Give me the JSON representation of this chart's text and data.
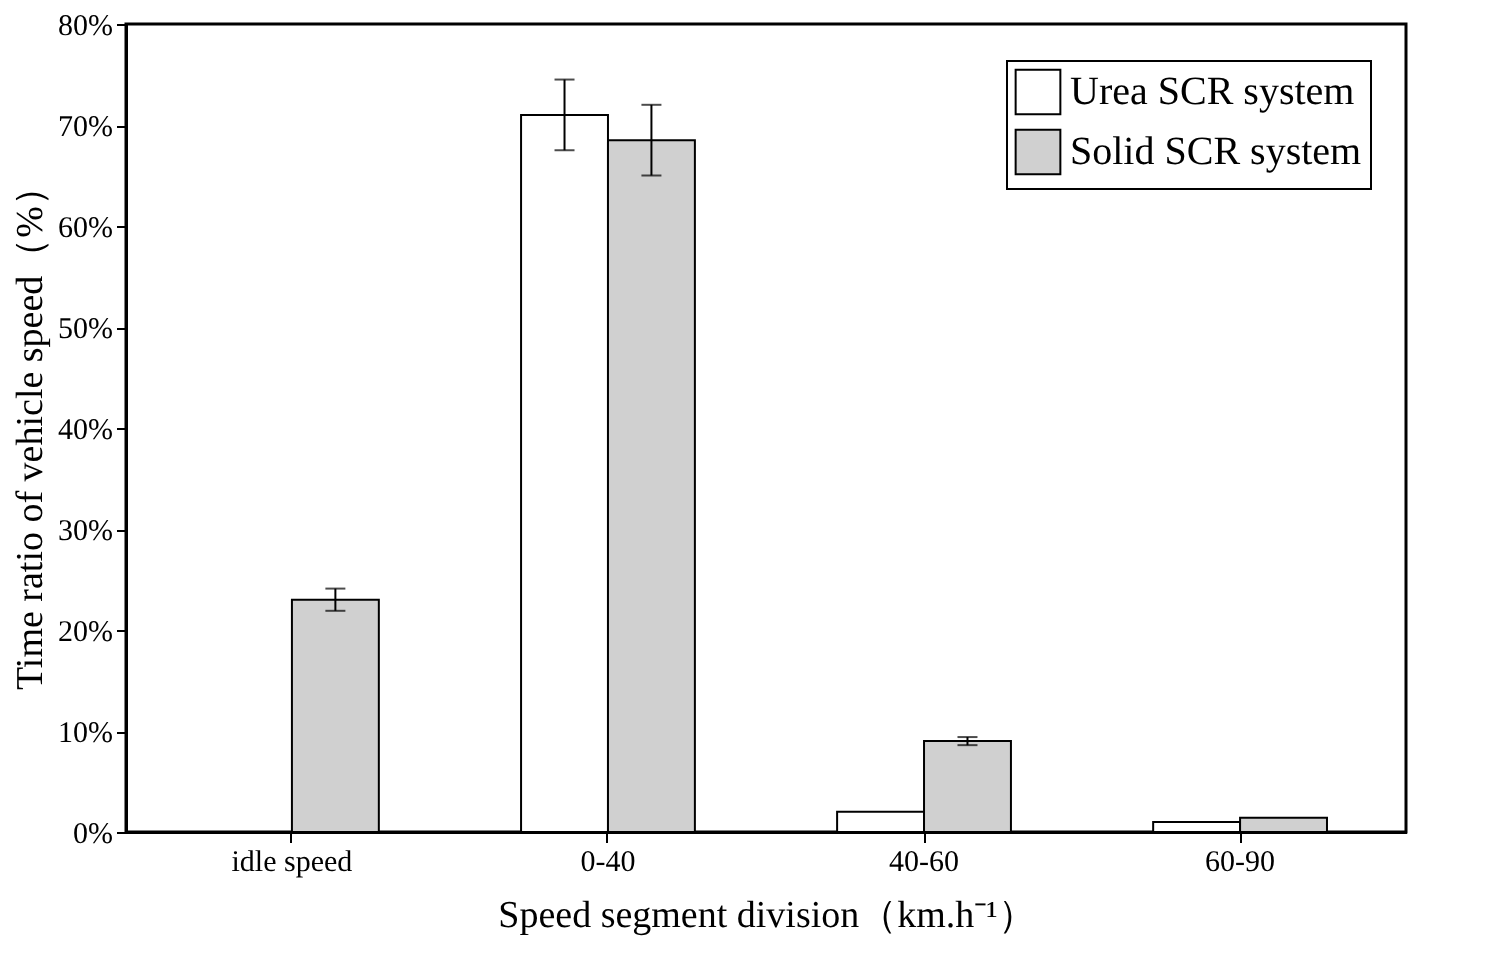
{
  "chart_data": {
    "type": "bar",
    "categories": [
      "idle speed",
      "0-40",
      "40-60",
      "60-90"
    ],
    "series": [
      {
        "name": "Urea SCR system",
        "color": "#ffffff",
        "values": [
          null,
          71.0,
          2.0,
          1.0
        ],
        "errors": [
          null,
          3.5,
          null,
          null
        ]
      },
      {
        "name": "Solid SCR system",
        "color": "#d0d0d0",
        "values": [
          23.0,
          68.5,
          9.0,
          1.4
        ],
        "errors": [
          1.1,
          3.5,
          0.4,
          null
        ]
      }
    ],
    "xlabel": "Speed segment division（km.h⁻¹）",
    "ylabel": "Time ratio of vehicle speed（%）",
    "ylim": [
      0,
      80
    ],
    "yticks": [
      {
        "value": 0,
        "label": "0%"
      },
      {
        "value": 10,
        "label": "10%"
      },
      {
        "value": 20,
        "label": "20%"
      },
      {
        "value": 30,
        "label": "30%"
      },
      {
        "value": 40,
        "label": "40%"
      },
      {
        "value": 50,
        "label": "50%"
      },
      {
        "value": 60,
        "label": "60%"
      },
      {
        "value": 70,
        "label": "70%"
      },
      {
        "value": 80,
        "label": "80%"
      }
    ],
    "legend": "top right",
    "grid": false
  }
}
